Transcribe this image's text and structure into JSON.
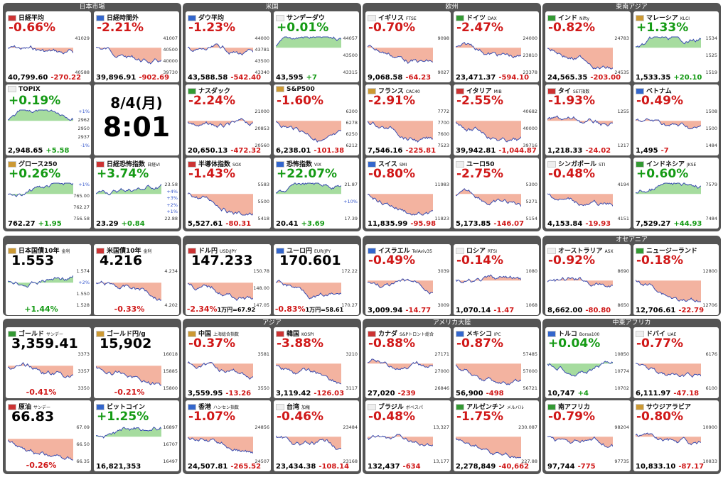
{
  "sections": [
    {
      "title": "日本市場",
      "tiles": [
        {
          "name": "日経平均",
          "big": "-0.66%",
          "foot": [
            "40,799.60",
            "-270.22"
          ],
          "axis": [
            "41029",
            "40588"
          ]
        },
        {
          "name": "日経時間外",
          "big": "-2.21%",
          "foot": [
            "39,896.91",
            "-902.69"
          ],
          "axis": [
            "41007",
            "40500",
            "40000",
            "39730"
          ]
        },
        {
          "name": "TOPIX",
          "big": "+0.19%",
          "foot": [
            "2,948.65",
            "+5.58"
          ],
          "axis": [
            "+1%",
            "2962",
            "2950",
            "2937",
            "-1%"
          ]
        },
        {
          "date": "8/4(月)",
          "time": "8:01"
        },
        {
          "name": "グロース250",
          "big": "+0.26%",
          "foot": [
            "762.27",
            "+1.95"
          ],
          "axis": [
            "+1%",
            "765.00",
            "762.27",
            "756.58"
          ]
        },
        {
          "name": "日経恐怖指数",
          "sub": "日経VI",
          "big": "+3.74%",
          "foot": [
            "23.29",
            "+0.84"
          ],
          "axis": [
            "23.58",
            "+4%",
            "+3%",
            "+2%",
            "+1%",
            "22.88"
          ]
        }
      ]
    },
    {
      "title": "米国",
      "tiles": [
        {
          "name": "ダウ平均",
          "big": "-1.23%",
          "foot": [
            "43,588.58",
            "-542.40"
          ],
          "axis": [
            "44000",
            "43781",
            "43500",
            "43340"
          ]
        },
        {
          "name": "サンデーダウ",
          "big": "+0.01%",
          "foot": [
            "43,595",
            "+7"
          ],
          "axis": [
            "44057",
            "43500",
            "43315"
          ]
        },
        {
          "name": "ナスダック",
          "big": "-2.24%",
          "foot": [
            "20,650.13",
            "-472.32"
          ],
          "axis": [
            "21000",
            "20853",
            "20560"
          ]
        },
        {
          "name": "S&P500",
          "big": "-1.60%",
          "foot": [
            "6,238.01",
            "-101.38"
          ],
          "axis": [
            "6300",
            "6278",
            "6250",
            "6212"
          ]
        },
        {
          "name": "半導体指数",
          "sub": "SOX",
          "big": "-1.43%",
          "foot": [
            "5,527.61",
            "-80.31"
          ],
          "axis": [
            "5583",
            "5500",
            "5418"
          ]
        },
        {
          "name": "恐怖指数",
          "sub": "VIX",
          "big": "+22.07%",
          "foot": [
            "20.41",
            "+3.69"
          ],
          "axis": [
            "21.87",
            "+10%",
            "17.39"
          ]
        }
      ]
    },
    {
      "title": "欧州",
      "tiles": [
        {
          "name": "イギリス",
          "sub": "FTSE",
          "big": "-0.70%",
          "foot": [
            "9,068.58",
            "-64.23"
          ],
          "axis": [
            "9098",
            "9027"
          ]
        },
        {
          "name": "ドイツ",
          "sub": "DAX",
          "big": "-2.47%",
          "foot": [
            "23,471.37",
            "-594.10"
          ],
          "axis": [
            "24000",
            "23810",
            "23378"
          ]
        },
        {
          "name": "フランス",
          "sub": "CAC40",
          "big": "-2.91%",
          "foot": [
            "7,546.16",
            "-225.81"
          ],
          "axis": [
            "7772",
            "7700",
            "7600",
            "7523"
          ]
        },
        {
          "name": "イタリア",
          "sub": "MIB",
          "big": "-2.55%",
          "foot": [
            "39,942.81",
            "-1,044.87"
          ],
          "axis": [
            "40682",
            "40000",
            "39716"
          ]
        },
        {
          "name": "スイス",
          "sub": "SMI",
          "big": "-0.80%",
          "foot": [
            "11,835.99",
            "-95.98"
          ],
          "axis": [
            "11983",
            "11823"
          ]
        },
        {
          "name": "ユーロ50",
          "big": "-2.75%",
          "foot": [
            "5,173.85",
            "-146.07"
          ],
          "axis": [
            "5300",
            "5271",
            "5154"
          ]
        }
      ]
    },
    {
      "title": "東南アジア",
      "tiles": [
        {
          "name": "インド",
          "sub": "Nifty",
          "big": "-0.82%",
          "foot": [
            "24,565.35",
            "-203.00"
          ],
          "axis": [
            "24783",
            "24535"
          ]
        },
        {
          "name": "マレーシア",
          "sub": "KLCI",
          "big": "+1.33%",
          "foot": [
            "1,533.35",
            "+20.10"
          ],
          "axis": [
            "1534",
            "1525",
            "1519"
          ]
        },
        {
          "name": "タイ",
          "sub": "SET指数",
          "big": "-1.93%",
          "foot": [
            "1,218.33",
            "-24.02"
          ],
          "axis": [
            "1255",
            "1217"
          ]
        },
        {
          "name": "ベトナム",
          "big": "-0.49%",
          "foot": [
            "1,495",
            "-7"
          ],
          "axis": [
            "1508",
            "1500",
            "1484"
          ]
        },
        {
          "name": "シンガポール",
          "sub": "STI",
          "big": "-0.48%",
          "foot": [
            "4,153.84",
            "-19.93"
          ],
          "axis": [
            "4194",
            "4151"
          ]
        },
        {
          "name": "インドネシア",
          "sub": "JKSE",
          "big": "+0.60%",
          "foot": [
            "7,529.27",
            "+44.93"
          ],
          "axis": [
            "7579",
            "7484"
          ]
        }
      ]
    },
    {
      "tiles": [
        {
          "name": "日本国債10年",
          "sub": "金利",
          "price": "1.553",
          "foot": [
            "+1.44%"
          ],
          "axis": [
            "1.574",
            "+2%",
            "1.550",
            "1.528"
          ]
        },
        {
          "name": "米国債10年",
          "sub": "金利",
          "price": "4.216",
          "foot": [
            "-0.33%"
          ],
          "axis": [
            "4.234",
            "4.202"
          ]
        }
      ]
    },
    {
      "tiles": [
        {
          "name": "ドル円",
          "sub": "USD/JPY",
          "price": "147.233",
          "foot": [
            "-2.34%",
            "1万円=67.92"
          ],
          "axis": [
            "150.78",
            "148.00",
            "147.05"
          ]
        },
        {
          "name": "ユーロ円",
          "sub": "EUR/JPY",
          "price": "170.601",
          "foot": [
            "-0.83%",
            "1万円=58.61"
          ],
          "axis": [
            "172.22",
            "170.27"
          ]
        }
      ]
    },
    {
      "tiles": [
        {
          "name": "イスラエル",
          "sub": "TelAviv35",
          "big": "-0.49%",
          "foot": [
            "3,009.94",
            "-14.77"
          ],
          "axis": [
            "3039",
            "3009"
          ]
        },
        {
          "name": "ロシア",
          "sub": "RTSI",
          "big": "-0.14%",
          "foot": [
            "1,070.14",
            "-1.47"
          ],
          "axis": [
            "1080",
            "1068"
          ]
        }
      ]
    },
    {
      "title": "オセアニア",
      "tiles": [
        {
          "name": "オーストラリア",
          "sub": "ASX",
          "big": "-0.92%",
          "foot": [
            "8,662.00",
            "-80.80"
          ],
          "axis": [
            "8690",
            "8650"
          ]
        },
        {
          "name": "ニュージーランド",
          "big": "-0.18%",
          "foot": [
            "12,706.61",
            "-22.79"
          ],
          "axis": [
            "12800",
            "12706"
          ]
        }
      ]
    },
    {
      "tiles": [
        {
          "name": "ゴールド",
          "sub": "サンデー",
          "price": "3,359.41",
          "foot": [
            "-0.41%"
          ],
          "axis": [
            "3373",
            "3357",
            "3350"
          ]
        },
        {
          "name": "ゴールド円/g",
          "price": "15,902",
          "foot": [
            "-0.21%"
          ],
          "axis": [
            "16018",
            "15885",
            "15800"
          ]
        },
        {
          "name": "原油",
          "sub": "サンデー",
          "price": "66.83",
          "foot": [
            "-0.26%"
          ],
          "axis": [
            "67.09",
            "66.50",
            "66.35"
          ]
        },
        {
          "name": "ビットコイン",
          "big": "+1.25%",
          "foot": [
            "16,821,353"
          ],
          "axis": [
            "16897",
            "16707",
            "16497"
          ]
        }
      ]
    },
    {
      "title": "アジア",
      "tiles": [
        {
          "name": "中国",
          "sub": "上海総合指数",
          "big": "-0.37%",
          "foot": [
            "3,559.95",
            "-13.26"
          ],
          "axis": [
            "3581",
            "3550"
          ]
        },
        {
          "name": "韓国",
          "sub": "KOSPI",
          "big": "-3.88%",
          "foot": [
            "3,119.42",
            "-126.03"
          ],
          "axis": [
            "3210",
            "3117"
          ]
        },
        {
          "name": "香港",
          "sub": "ハンセン指数",
          "big": "-1.07%",
          "foot": [
            "24,507.81",
            "-265.52"
          ],
          "axis": [
            "24856",
            "24507"
          ]
        },
        {
          "name": "台湾",
          "sub": "加権",
          "big": "-0.46%",
          "foot": [
            "23,434.38",
            "-108.14"
          ],
          "axis": [
            "23484",
            "23168"
          ]
        }
      ]
    },
    {
      "title": "アメリカ大陸",
      "tiles": [
        {
          "name": "カナダ",
          "sub": "S&Pトロント総合",
          "big": "-0.88%",
          "foot": [
            "27,020",
            "-239"
          ],
          "axis": [
            "27171",
            "27000",
            "26846"
          ]
        },
        {
          "name": "メキシコ",
          "sub": "IPC",
          "big": "-0.87%",
          "foot": [
            "56,900",
            "-498"
          ],
          "axis": [
            "57485",
            "57000",
            "56721"
          ]
        },
        {
          "name": "ブラジル",
          "sub": "ボベスパ",
          "big": "-0.48%",
          "foot": [
            "132,437",
            "-634"
          ],
          "axis": [
            "13,327",
            "13,177"
          ]
        },
        {
          "name": "アルゼンチン",
          "sub": "メルバル",
          "big": "-1.75%",
          "foot": [
            "2,278,849",
            "-40,662"
          ],
          "axis": [
            "230.087",
            "227.88"
          ]
        }
      ]
    },
    {
      "title": "中東アフリカ",
      "tiles": [
        {
          "name": "トルコ",
          "sub": "Borsa100",
          "big": "+0.04%",
          "foot": [
            "10,747",
            "+4"
          ],
          "axis": [
            "10850",
            "10774",
            "10702"
          ]
        },
        {
          "name": "ドバイ",
          "sub": "UAE",
          "big": "-0.77%",
          "foot": [
            "6,111.97",
            "-47.18"
          ],
          "axis": [
            "6176",
            "6100"
          ]
        },
        {
          "name": "南アフリカ",
          "big": "-0.79%",
          "foot": [
            "97,744",
            "-775"
          ],
          "axis": [
            "98204",
            "97735"
          ]
        },
        {
          "name": "サウジアラビア",
          "big": "-0.80%",
          "foot": [
            "10,833.10",
            "-87.17"
          ],
          "axis": [
            "10900",
            "10833"
          ]
        }
      ]
    }
  ]
}
